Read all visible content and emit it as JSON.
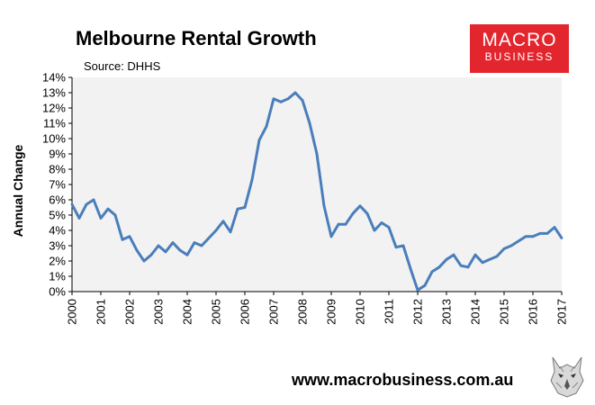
{
  "header": {
    "title": "Melbourne Rental Growth",
    "source": "Source: DHHS"
  },
  "logo": {
    "line1": "MACRO",
    "line2": "BUSINESS"
  },
  "footer": {
    "website": "www.macrobusiness.com.au"
  },
  "colors": {
    "line": "#4a7ebb",
    "plot_bg": "#f2f2f2",
    "logo_bg": "#e3262e"
  },
  "icons": {
    "mascot": "wolf-icon"
  },
  "chart_data": {
    "type": "line",
    "title": "Melbourne Rental Growth",
    "subtitle": "Source: DHHS",
    "xlabel": "",
    "ylabel": "Annual Change",
    "xlim": [
      2000,
      2017
    ],
    "ylim": [
      0,
      14
    ],
    "y_tick_labels": [
      "0%",
      "1%",
      "2%",
      "3%",
      "4%",
      "5%",
      "6%",
      "7%",
      "8%",
      "9%",
      "10%",
      "11%",
      "12%",
      "13%",
      "14%"
    ],
    "x_tick_labels": [
      "2000",
      "2001",
      "2002",
      "2003",
      "2004",
      "2005",
      "2006",
      "2007",
      "2008",
      "2009",
      "2010",
      "2011",
      "2012",
      "2013",
      "2014",
      "2015",
      "2016",
      "2017"
    ],
    "grid": false,
    "legend": "none",
    "series": [
      {
        "points": [
          [
            2000.0,
            5.7
          ],
          [
            2000.25,
            4.8
          ],
          [
            2000.5,
            5.7
          ],
          [
            2000.75,
            6.0
          ],
          [
            2001.0,
            4.8
          ],
          [
            2001.25,
            5.4
          ],
          [
            2001.5,
            5.0
          ],
          [
            2001.75,
            3.4
          ],
          [
            2002.0,
            3.6
          ],
          [
            2002.25,
            2.7
          ],
          [
            2002.5,
            2.0
          ],
          [
            2002.75,
            2.4
          ],
          [
            2003.0,
            3.0
          ],
          [
            2003.25,
            2.6
          ],
          [
            2003.5,
            3.2
          ],
          [
            2003.75,
            2.7
          ],
          [
            2004.0,
            2.4
          ],
          [
            2004.25,
            3.2
          ],
          [
            2004.5,
            3.0
          ],
          [
            2004.75,
            3.5
          ],
          [
            2005.0,
            4.0
          ],
          [
            2005.25,
            4.6
          ],
          [
            2005.5,
            3.9
          ],
          [
            2005.75,
            5.4
          ],
          [
            2006.0,
            5.5
          ],
          [
            2006.25,
            7.3
          ],
          [
            2006.5,
            9.9
          ],
          [
            2006.75,
            10.8
          ],
          [
            2007.0,
            12.6
          ],
          [
            2007.25,
            12.4
          ],
          [
            2007.5,
            12.6
          ],
          [
            2007.75,
            13.0
          ],
          [
            2008.0,
            12.5
          ],
          [
            2008.25,
            11.0
          ],
          [
            2008.5,
            9.0
          ],
          [
            2008.75,
            5.6
          ],
          [
            2009.0,
            3.6
          ],
          [
            2009.25,
            4.4
          ],
          [
            2009.5,
            4.4
          ],
          [
            2009.75,
            5.1
          ],
          [
            2010.0,
            5.6
          ],
          [
            2010.25,
            5.1
          ],
          [
            2010.5,
            4.0
          ],
          [
            2010.75,
            4.5
          ],
          [
            2011.0,
            4.2
          ],
          [
            2011.25,
            2.9
          ],
          [
            2011.5,
            3.0
          ],
          [
            2011.75,
            1.5
          ],
          [
            2012.0,
            0.1
          ],
          [
            2012.25,
            0.4
          ],
          [
            2012.5,
            1.3
          ],
          [
            2012.75,
            1.6
          ],
          [
            2013.0,
            2.1
          ],
          [
            2013.25,
            2.4
          ],
          [
            2013.5,
            1.7
          ],
          [
            2013.75,
            1.6
          ],
          [
            2014.0,
            2.4
          ],
          [
            2014.25,
            1.9
          ],
          [
            2014.5,
            2.1
          ],
          [
            2014.75,
            2.3
          ],
          [
            2015.0,
            2.8
          ],
          [
            2015.25,
            3.0
          ],
          [
            2015.5,
            3.3
          ],
          [
            2015.75,
            3.6
          ],
          [
            2016.0,
            3.6
          ],
          [
            2016.25,
            3.8
          ],
          [
            2016.5,
            3.8
          ],
          [
            2016.75,
            4.2
          ],
          [
            2017.0,
            3.5
          ]
        ]
      }
    ]
  }
}
